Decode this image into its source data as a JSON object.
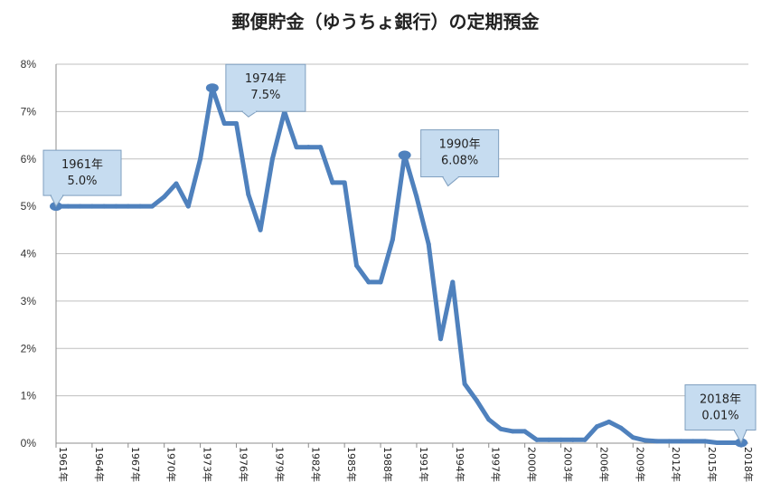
{
  "chart_data": {
    "type": "line",
    "title": "郵便貯金（ゆうちょ銀行）の定期預金",
    "xlabel": "",
    "ylabel": "",
    "ylim": [
      0,
      8
    ],
    "y_ticks": [
      "0%",
      "1%",
      "2%",
      "3%",
      "4%",
      "5%",
      "6%",
      "7%",
      "8%"
    ],
    "x_range": [
      1961,
      2018
    ],
    "x_ticks": [
      "1961年",
      "1964年",
      "1967年",
      "1970年",
      "1973年",
      "1976年",
      "1979年",
      "1982年",
      "1985年",
      "1988年",
      "1991年",
      "1994年",
      "1997年",
      "2000年",
      "2003年",
      "2006年",
      "2009年",
      "2012年",
      "2015年",
      "2018年"
    ],
    "grid": true,
    "legend": "none",
    "series_color": "#4F81BD",
    "series": [
      {
        "x": [
          1961,
          1962,
          1963,
          1964,
          1965,
          1966,
          1967,
          1968,
          1969,
          1970,
          1971,
          1972,
          1973,
          1974,
          1975,
          1976,
          1977,
          1978,
          1979,
          1980,
          1981,
          1982,
          1983,
          1984,
          1985,
          1986,
          1987,
          1988,
          1989,
          1990,
          1991,
          1992,
          1993,
          1994,
          1995,
          1996,
          1997,
          1998,
          1999,
          2000,
          2001,
          2002,
          2003,
          2004,
          2005,
          2006,
          2007,
          2008,
          2009,
          2010,
          2011,
          2012,
          2013,
          2014,
          2015,
          2016,
          2017,
          2018
        ],
        "values": [
          5.0,
          5.0,
          5.0,
          5.0,
          5.0,
          5.0,
          5.0,
          5.0,
          5.0,
          5.2,
          5.48,
          5.0,
          6.0,
          7.5,
          6.75,
          6.75,
          5.25,
          4.5,
          6.0,
          7.0,
          6.25,
          6.25,
          6.25,
          5.5,
          5.5,
          3.75,
          3.4,
          3.4,
          4.3,
          6.08,
          5.2,
          4.2,
          2.2,
          3.4,
          1.25,
          0.9,
          0.5,
          0.3,
          0.25,
          0.25,
          0.07,
          0.07,
          0.07,
          0.07,
          0.07,
          0.35,
          0.45,
          0.32,
          0.12,
          0.06,
          0.04,
          0.04,
          0.04,
          0.04,
          0.04,
          0.01,
          0.01,
          0.01
        ]
      }
    ],
    "annotations": [
      {
        "x": 1961,
        "y": 5.0,
        "text1": "1961年",
        "text2": "5.0%"
      },
      {
        "x": 1974,
        "y": 7.5,
        "text1": "1974年",
        "text2": "7.5%"
      },
      {
        "x": 1990,
        "y": 6.08,
        "text1": "1990年",
        "text2": "6.08%"
      },
      {
        "x": 2018,
        "y": 0.01,
        "text1": "2018年",
        "text2": "0.01%"
      }
    ]
  }
}
